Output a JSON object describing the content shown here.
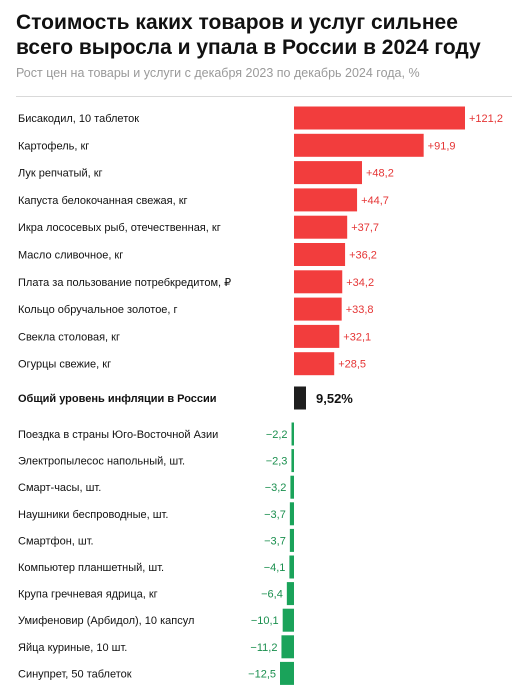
{
  "title": "Стоимость каких товаров и услуг сильнее всего выросла и упала в России в 2024 году",
  "subtitle": "Рост цен на товары и услуги с декабря 2023 по декабрь 2024 года, %",
  "colors": {
    "positive": "#f23d3d",
    "positive_label": "#e53535",
    "negative": "#1aa35a",
    "negative_label": "#1a8f4e",
    "inflation": "#1e1e1e"
  },
  "chart_data": {
    "type": "bar",
    "orientation": "horizontal",
    "title": "Стоимость каких товаров и услуг сильнее всего выросла и упала в России в 2024 году",
    "subtitle": "Рост цен на товары и услуги с декабря 2023 по декабрь 2024 года, %",
    "grid": false,
    "categories": [
      "Бисакодил, 10 таблеток",
      "Картофель, кг",
      "Лук репчатый, кг",
      "Капуста белокочанная свежая, кг",
      "Икра лососевых рыб, отечественная, кг",
      "Масло сливочное, кг",
      "Плата за пользование потребкредитом, ₽",
      "Кольцо обручальное золотое, г",
      "Свекла столовая, кг",
      "Огурцы свежие, кг",
      "Общий уровень инфляции в России",
      "Поездка в страны Юго-Восточной Азии",
      "Электропылесос напольный, шт.",
      "Смарт-часы, шт.",
      "Наушники беспроводные, шт.",
      "Смартфон, шт.",
      "Компьютер планшетный, шт.",
      "Крупа гречневая ядрица, кг",
      "Умифеновир (Арбидол), 10 капсул",
      "Яйца куриные, 10 шт.",
      "Синупрет, 50 таблеток"
    ],
    "values": [
      121.2,
      91.9,
      48.2,
      44.7,
      37.7,
      36.2,
      34.2,
      33.8,
      32.1,
      28.5,
      9.52,
      -2.2,
      -2.3,
      -3.2,
      -3.7,
      -3.7,
      -4.1,
      -6.4,
      -10.1,
      -11.2,
      -12.5
    ],
    "value_labels": [
      "+121,2",
      "+91,9",
      "+48,2",
      "+44,7",
      "+37,7",
      "+36,2",
      "+34,2",
      "+33,8",
      "+32,1",
      "+28,5",
      "9,52%",
      "−2,2",
      "−2,3",
      "−3,2",
      "−3,7",
      "−3,7",
      "−4,1",
      "−6,4",
      "−10,1",
      "−11,2",
      "−12,5"
    ],
    "highlight": "Общий уровень инфляции в России"
  }
}
